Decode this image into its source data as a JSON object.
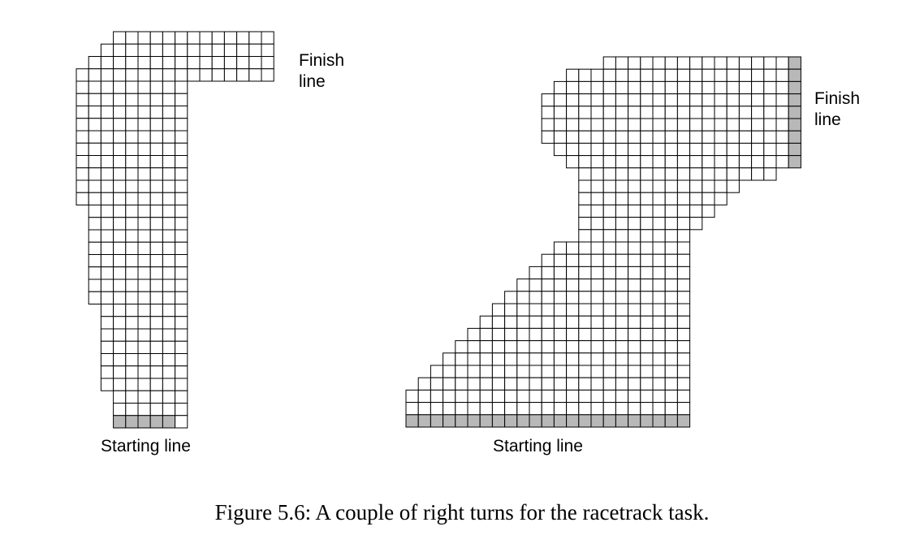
{
  "track_left": {
    "finish_label": "Finish\nline",
    "start_label": "Starting line",
    "rows": [
      [
        3,
        16
      ],
      [
        2,
        16
      ],
      [
        1,
        16
      ],
      [
        0,
        16
      ],
      [
        0,
        9
      ],
      [
        0,
        9
      ],
      [
        0,
        9
      ],
      [
        0,
        9
      ],
      [
        0,
        9
      ],
      [
        0,
        9
      ],
      [
        0,
        9
      ],
      [
        0,
        9
      ],
      [
        0,
        9
      ],
      [
        0,
        9
      ],
      [
        1,
        9
      ],
      [
        1,
        9
      ],
      [
        1,
        9
      ],
      [
        1,
        9
      ],
      [
        1,
        9
      ],
      [
        1,
        9
      ],
      [
        1,
        9
      ],
      [
        1,
        9
      ],
      [
        2,
        9
      ],
      [
        2,
        9
      ],
      [
        2,
        9
      ],
      [
        2,
        9
      ],
      [
        2,
        9
      ],
      [
        2,
        9
      ],
      [
        2,
        9
      ],
      [
        3,
        9
      ],
      [
        3,
        9
      ],
      [
        3,
        9
      ]
    ],
    "finish_rows": [
      0,
      1,
      2,
      3,
      4,
      5
    ],
    "finish_col": 16,
    "start_row": 31,
    "start_cols": [
      3,
      8
    ]
  },
  "track_right": {
    "finish_label": "Finish\nline",
    "start_label": "Starting line",
    "rows": [
      [
        16,
        32
      ],
      [
        13,
        32
      ],
      [
        12,
        32
      ],
      [
        11,
        32
      ],
      [
        11,
        32
      ],
      [
        11,
        32
      ],
      [
        11,
        32
      ],
      [
        12,
        32
      ],
      [
        13,
        32
      ],
      [
        14,
        30
      ],
      [
        14,
        27
      ],
      [
        14,
        26
      ],
      [
        14,
        25
      ],
      [
        14,
        24
      ],
      [
        14,
        23
      ],
      [
        12,
        23
      ],
      [
        11,
        23
      ],
      [
        10,
        23
      ],
      [
        9,
        23
      ],
      [
        8,
        23
      ],
      [
        7,
        23
      ],
      [
        6,
        23
      ],
      [
        5,
        23
      ],
      [
        4,
        23
      ],
      [
        3,
        23
      ],
      [
        2,
        23
      ],
      [
        1,
        23
      ],
      [
        0,
        23
      ],
      [
        0,
        23
      ],
      [
        0,
        23
      ]
    ],
    "finish_rows": [
      0,
      1,
      2,
      3,
      4,
      5,
      6,
      7,
      8
    ],
    "finish_col": 31,
    "start_row": 29,
    "start_cols": [
      0,
      23
    ]
  },
  "caption": "Figure 5.6:  A couple of right turns for the racetrack task."
}
